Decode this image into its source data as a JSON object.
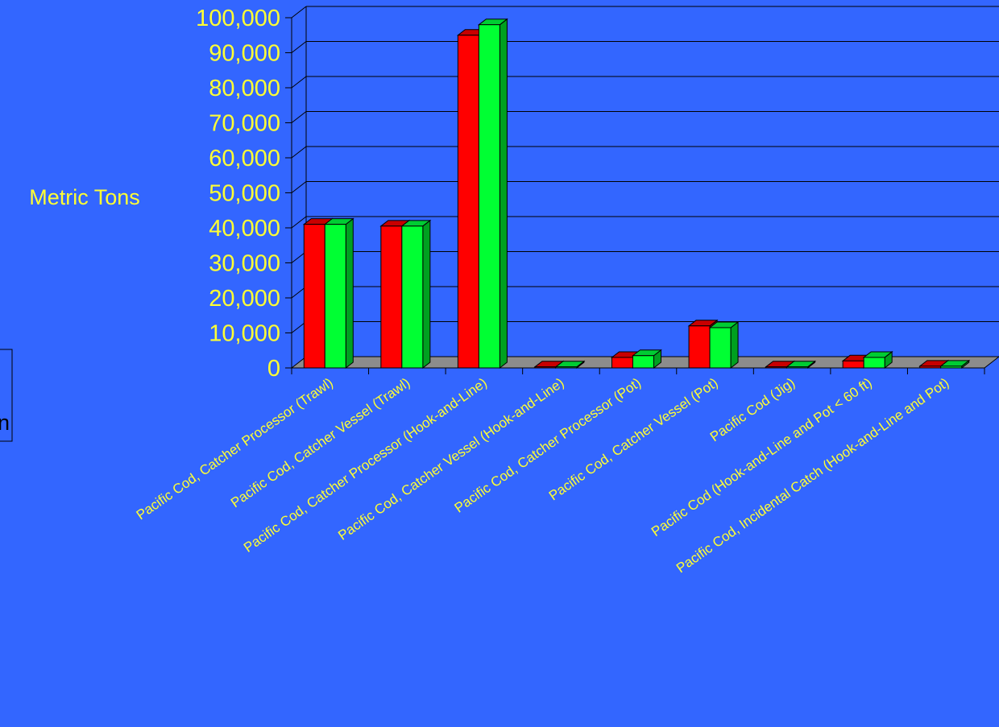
{
  "chart_data": {
    "type": "bar",
    "title": "",
    "ylabel": "Metric Tons",
    "xlabel": "",
    "ylim": [
      0,
      100000
    ],
    "yticks": [
      0,
      10000,
      20000,
      30000,
      40000,
      50000,
      60000,
      70000,
      80000,
      90000,
      100000
    ],
    "ytick_labels": [
      "0",
      "10,000",
      "20,000",
      "30,000",
      "40,000",
      "50,000",
      "60,000",
      "70,000",
      "80,000",
      "90,000",
      "100,000"
    ],
    "grid": true,
    "three_d": true,
    "categories": [
      "Pacific Cod, Catcher Processor (Trawl)",
      "Pacific Cod, Catcher Vessel (Trawl)",
      "Pacific Cod, Catcher Processor (Hook-and-Line)",
      "Pacific Cod, Catcher Vessel (Hook-and-Line)",
      "Pacific Cod, Catcher Processor (Pot)",
      "Pacific Cod, Catcher Vessel (Pot)",
      "Pacific Cod (Jig)",
      "Pacific Cod (Hook-and-Line and Pot < 60 ft)",
      "Pacific Cod, Incidental Catch (Hook-and-Line and Pot)"
    ],
    "series": [
      {
        "values": [
          41000,
          40500,
          95000,
          300,
          3000,
          12000,
          300,
          2000,
          500
        ]
      },
      {
        "values": [
          41000,
          40500,
          98000,
          300,
          3500,
          11500,
          300,
          3000,
          500
        ]
      }
    ],
    "legend": {
      "placement": "left",
      "visible_text": "n"
    }
  },
  "colors": {
    "background": "#3366FF",
    "text": "#FFFF33",
    "series": [
      "#FF0000",
      "#00FF33"
    ],
    "series_side": [
      "#8B0000",
      "#00A020"
    ],
    "series_top": [
      "#C80000",
      "#00CC33"
    ],
    "floor": "#8C8C8C",
    "gridline": "#000000"
  }
}
